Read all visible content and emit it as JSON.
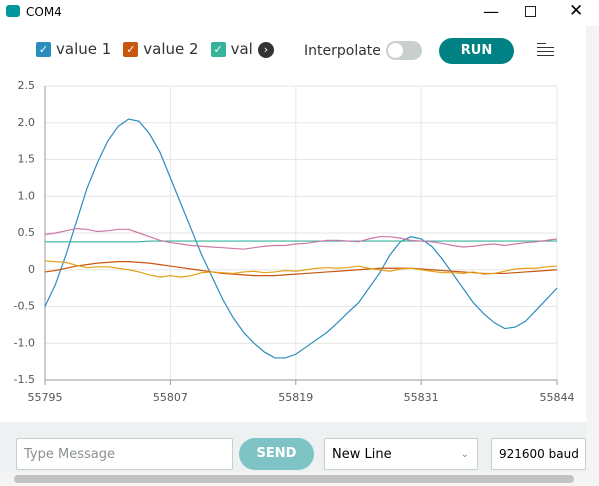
{
  "window": {
    "title": "COM4"
  },
  "toolbar": {
    "interpolate_label": "Interpolate",
    "run_label": "RUN"
  },
  "footer": {
    "message_placeholder": "Type Message",
    "send_label": "SEND",
    "line_ending": "New Line",
    "baud": "921600 baud"
  },
  "chart_data": {
    "type": "line",
    "x": [
      55795,
      55796,
      55797,
      55798,
      55799,
      55800,
      55801,
      55802,
      55803,
      55804,
      55805,
      55806,
      55807,
      55808,
      55809,
      55810,
      55811,
      55812,
      55813,
      55814,
      55815,
      55816,
      55817,
      55818,
      55819,
      55820,
      55821,
      55822,
      55823,
      55824,
      55825,
      55826,
      55827,
      55828,
      55829,
      55830,
      55831,
      55832,
      55833,
      55834,
      55835,
      55836,
      55837,
      55838,
      55839,
      55840,
      55841,
      55842,
      55843,
      55844
    ],
    "series": [
      {
        "name": "value 1",
        "color": "#2b8cbe",
        "values": [
          -0.5,
          -0.2,
          0.2,
          0.65,
          1.1,
          1.45,
          1.75,
          1.95,
          2.05,
          2.02,
          1.85,
          1.6,
          1.25,
          0.9,
          0.55,
          0.2,
          -0.1,
          -0.4,
          -0.65,
          -0.85,
          -1.0,
          -1.12,
          -1.2,
          -1.2,
          -1.15,
          -1.05,
          -0.95,
          -0.85,
          -0.72,
          -0.58,
          -0.45,
          -0.25,
          -0.05,
          0.2,
          0.38,
          0.45,
          0.42,
          0.32,
          0.15,
          -0.05,
          -0.25,
          -0.45,
          -0.6,
          -0.72,
          -0.8,
          -0.78,
          -0.7,
          -0.55,
          -0.4,
          -0.25
        ]
      },
      {
        "name": "value 2",
        "color": "#c8560e",
        "values": [
          -0.03,
          -0.01,
          0.02,
          0.05,
          0.07,
          0.09,
          0.1,
          0.11,
          0.11,
          0.1,
          0.09,
          0.07,
          0.05,
          0.03,
          0.01,
          -0.01,
          -0.03,
          -0.05,
          -0.06,
          -0.07,
          -0.08,
          -0.08,
          -0.08,
          -0.07,
          -0.06,
          -0.05,
          -0.04,
          -0.03,
          -0.02,
          -0.01,
          0.0,
          0.01,
          0.02,
          0.02,
          0.02,
          0.02,
          0.01,
          0.0,
          -0.01,
          -0.02,
          -0.03,
          -0.04,
          -0.05,
          -0.05,
          -0.05,
          -0.04,
          -0.03,
          -0.02,
          -0.01,
          0.0
        ]
      },
      {
        "name": "val",
        "color": "#35b39b",
        "values": [
          0.38,
          0.38,
          0.38,
          0.38,
          0.38,
          0.38,
          0.38,
          0.38,
          0.38,
          0.38,
          0.39,
          0.39,
          0.39,
          0.39,
          0.39,
          0.39,
          0.39,
          0.39,
          0.39,
          0.39,
          0.39,
          0.39,
          0.39,
          0.39,
          0.39,
          0.39,
          0.39,
          0.39,
          0.39,
          0.39,
          0.39,
          0.39,
          0.39,
          0.39,
          0.39,
          0.39,
          0.39,
          0.39,
          0.39,
          0.39,
          0.39,
          0.39,
          0.39,
          0.39,
          0.39,
          0.39,
          0.39,
          0.39,
          0.39,
          0.39
        ]
      },
      {
        "color": "#cc79a7",
        "values": [
          0.48,
          0.5,
          0.53,
          0.56,
          0.55,
          0.52,
          0.53,
          0.55,
          0.55,
          0.5,
          0.45,
          0.4,
          0.37,
          0.35,
          0.33,
          0.32,
          0.31,
          0.3,
          0.29,
          0.28,
          0.3,
          0.32,
          0.33,
          0.33,
          0.35,
          0.36,
          0.38,
          0.4,
          0.4,
          0.39,
          0.38,
          0.42,
          0.45,
          0.45,
          0.43,
          0.4,
          0.39,
          0.38,
          0.36,
          0.33,
          0.31,
          0.32,
          0.34,
          0.35,
          0.33,
          0.35,
          0.37,
          0.38,
          0.4,
          0.42
        ]
      },
      {
        "color": "#e3a21a",
        "values": [
          0.12,
          0.11,
          0.1,
          0.06,
          0.03,
          0.04,
          0.04,
          0.02,
          0.0,
          -0.03,
          -0.07,
          -0.1,
          -0.08,
          -0.1,
          -0.08,
          -0.04,
          -0.03,
          -0.04,
          -0.05,
          -0.03,
          -0.02,
          -0.04,
          -0.03,
          -0.01,
          -0.02,
          0.0,
          0.02,
          0.03,
          0.02,
          0.03,
          0.05,
          0.02,
          0.0,
          -0.02,
          0.01,
          0.02,
          0.0,
          -0.02,
          -0.04,
          -0.04,
          -0.05,
          -0.03,
          -0.06,
          -0.05,
          -0.02,
          0.01,
          0.02,
          0.02,
          0.04,
          0.05
        ]
      }
    ],
    "xlim": [
      55795,
      55844
    ],
    "xticks": [
      55795,
      55807,
      55819,
      55831,
      55844
    ],
    "ylim": [
      -1.5,
      2.5
    ],
    "yticks": [
      -1.5,
      {
        "value": -1,
        "label": "-1.0"
      },
      -0.5,
      0,
      0.5,
      {
        "value": 1,
        "label": "1.0"
      },
      1.5,
      {
        "value": 2,
        "label": "2.0"
      },
      2.5
    ],
    "grid": true
  }
}
